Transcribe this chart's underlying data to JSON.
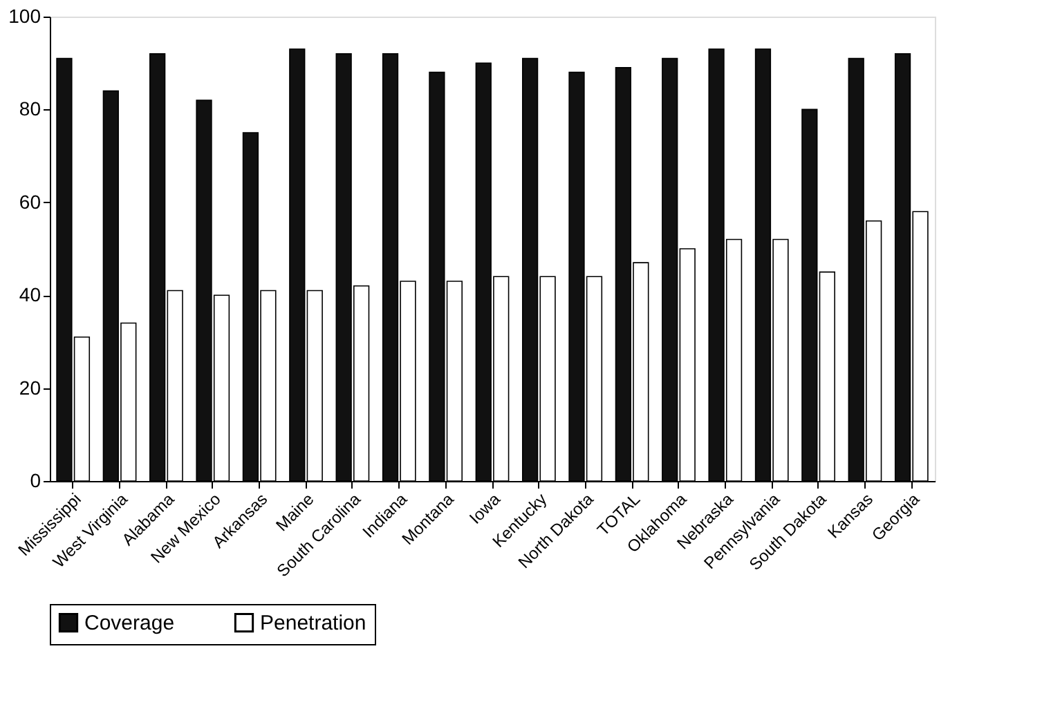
{
  "chart_data": {
    "type": "bar",
    "categories": [
      "Mississippi",
      "West Virginia",
      "Alabama",
      "New Mexico",
      "Arkansas",
      "Maine",
      "South Carolina",
      "Indiana",
      "Montana",
      "Iowa",
      "Kentucky",
      "North Dakota",
      "TOTAL",
      "Oklahoma",
      "Nebraska",
      "Pennsylvania",
      "South Dakota",
      "Kansas",
      "Georgia"
    ],
    "series": [
      {
        "name": "Coverage",
        "color": "#111111",
        "values": [
          91,
          84,
          92,
          82,
          75,
          93,
          92,
          92,
          88,
          90,
          91,
          88,
          89,
          91,
          93,
          93,
          80,
          91,
          92
        ]
      },
      {
        "name": "Penetration",
        "color": "#ffffff",
        "values": [
          31,
          34,
          41,
          40,
          41,
          41,
          42,
          43,
          43,
          44,
          44,
          44,
          47,
          50,
          52,
          52,
          45,
          56,
          58
        ]
      }
    ],
    "ylim": [
      0,
      100
    ],
    "yticks": [
      0,
      20,
      40,
      60,
      80,
      100
    ],
    "grid": false,
    "legend": "bottom"
  }
}
